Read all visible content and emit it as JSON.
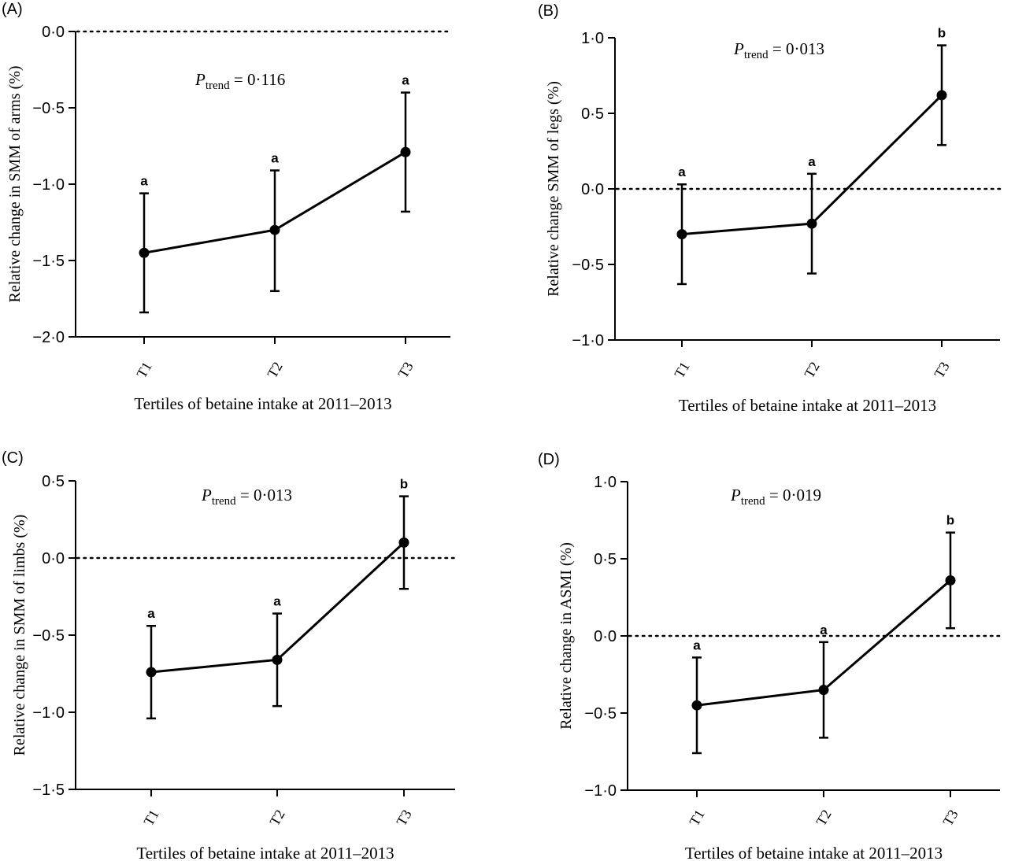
{
  "figure": {
    "x_tick_labels": [
      "T1",
      "T2",
      "T3"
    ]
  },
  "chart_data": [
    {
      "type": "line",
      "panel_label": "(A)",
      "title": "",
      "xlabel": "Tertiles of betaine intake at 2011–2013",
      "ylabel": "Relative change in SMM of arms (%)",
      "categories": [
        "T1",
        "T2",
        "T3"
      ],
      "values": [
        -1.45,
        -1.3,
        -0.79
      ],
      "error_low": [
        -1.84,
        -1.7,
        -1.18
      ],
      "error_high": [
        -1.06,
        -0.91,
        -0.4
      ],
      "letters": [
        "a",
        "a",
        "a"
      ],
      "ylim": [
        -2.0,
        0.0
      ],
      "yticks": [
        0.0,
        -0.5,
        -1.0,
        -1.5,
        -2.0
      ],
      "ytick_labels": [
        "0·0",
        "−0·5",
        "−1·0",
        "−1·5",
        "−2·0"
      ],
      "reference_line": 0.0,
      "annotation": {
        "p_label": "P",
        "p_subscript": "trend",
        "p_value": " = 0·116"
      }
    },
    {
      "type": "line",
      "panel_label": "(B)",
      "title": "",
      "xlabel": "Tertiles of betaine intake at 2011–2013",
      "ylabel": "Relative change SMM of legs (%)",
      "categories": [
        "T1",
        "T2",
        "T3"
      ],
      "values": [
        -0.3,
        -0.23,
        0.62
      ],
      "error_low": [
        -0.63,
        -0.56,
        0.29
      ],
      "error_high": [
        0.03,
        0.1,
        0.95
      ],
      "letters": [
        "a",
        "a",
        "b"
      ],
      "ylim": [
        -1.0,
        1.0
      ],
      "yticks": [
        1.0,
        0.5,
        0.0,
        -0.5,
        -1.0
      ],
      "ytick_labels": [
        "1·0",
        "0·5",
        "0·0",
        "−0·5",
        "−1·0"
      ],
      "reference_line": 0.0,
      "annotation": {
        "p_label": "P",
        "p_subscript": "trend",
        "p_value": " = 0·013"
      }
    },
    {
      "type": "line",
      "panel_label": "(C)",
      "title": "",
      "xlabel": "Tertiles of betaine intake at 2011–2013",
      "ylabel": "Relative change in SMM of limbs (%)",
      "categories": [
        "T1",
        "T2",
        "T3"
      ],
      "values": [
        -0.74,
        -0.66,
        0.1
      ],
      "error_low": [
        -1.04,
        -0.96,
        -0.2
      ],
      "error_high": [
        -0.44,
        -0.36,
        0.4
      ],
      "letters": [
        "a",
        "a",
        "b"
      ],
      "ylim": [
        -1.5,
        0.5
      ],
      "yticks": [
        0.5,
        0.0,
        -0.5,
        -1.0,
        -1.5
      ],
      "ytick_labels": [
        "0·5",
        "0·0",
        "−0·5",
        "−1·0",
        "−1·5"
      ],
      "reference_line": 0.0,
      "annotation": {
        "p_label": "P",
        "p_subscript": "trend",
        "p_value": " = 0·013"
      }
    },
    {
      "type": "line",
      "panel_label": "(D)",
      "title": "",
      "xlabel": "Tertiles of betaine intake at 2011–2013",
      "ylabel": "Relative change in ASMI (%)",
      "categories": [
        "T1",
        "T2",
        "T3"
      ],
      "values": [
        -0.45,
        -0.35,
        0.36
      ],
      "error_low": [
        -0.76,
        -0.66,
        0.05
      ],
      "error_high": [
        -0.14,
        -0.04,
        0.67
      ],
      "letters": [
        "a",
        "a",
        "b"
      ],
      "ylim": [
        -1.0,
        1.0
      ],
      "yticks": [
        1.0,
        0.5,
        0.0,
        -0.5,
        -1.0
      ],
      "ytick_labels": [
        "1·0",
        "0·5",
        "0·0",
        "−0·5",
        "−1·0"
      ],
      "reference_line": 0.0,
      "annotation": {
        "p_label": "P",
        "p_subscript": "trend",
        "p_value": " = 0·019"
      }
    }
  ]
}
